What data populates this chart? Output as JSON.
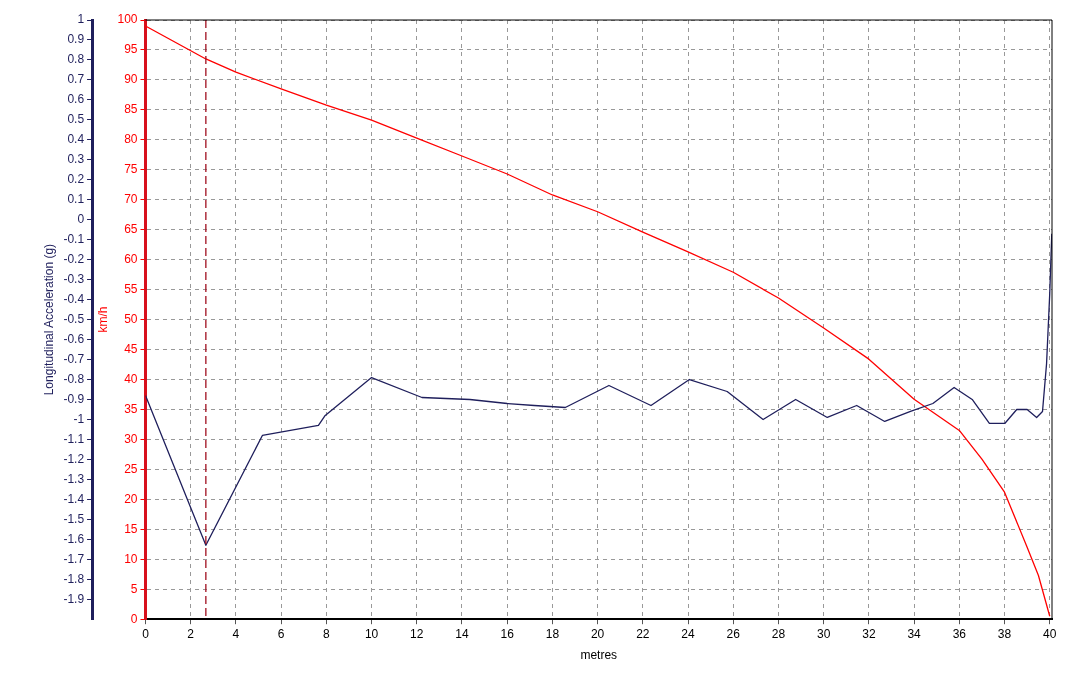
{
  "chart_data": {
    "type": "line",
    "xlabel": "metres",
    "ylabel": "Longitudinal Acceleration (g)",
    "y2label": "km/h",
    "xlim": [
      0,
      40.1
    ],
    "xticks": [
      0,
      2,
      4,
      6,
      8,
      10,
      12,
      14,
      16,
      18,
      20,
      22,
      24,
      26,
      28,
      30,
      32,
      34,
      36,
      38,
      40
    ],
    "ylim": [
      -2,
      1
    ],
    "yticks": [
      1,
      0.9,
      0.8,
      0.7,
      0.6,
      0.5,
      0.4,
      0.3,
      0.2,
      0.1,
      0,
      -0.1,
      -0.2,
      -0.3,
      -0.4,
      -0.5,
      -0.6,
      -0.7,
      -0.8,
      -0.9,
      -1,
      -1.1,
      -1.2,
      -1.3,
      -1.4,
      -1.5,
      -1.6,
      -1.7,
      -1.8,
      -1.9
    ],
    "y2lim": [
      0,
      100
    ],
    "y2ticks": [
      0,
      5,
      10,
      15,
      20,
      25,
      30,
      35,
      40,
      45,
      50,
      55,
      60,
      65,
      70,
      75,
      80,
      85,
      90,
      95,
      100
    ],
    "grid": true,
    "legend": false,
    "marker": "none",
    "line_style": "solid",
    "ref_lines": [
      {
        "axis": "x",
        "value": 2.67,
        "color": "#a01020",
        "line_style": "dashed"
      }
    ],
    "series": [
      {
        "axis": "y",
        "color": "#1f1f5c",
        "x": [
          0,
          2.67,
          5.17,
          7.65,
          7.95,
          10.0,
          12.23,
          14.35,
          16.0,
          17.2,
          18.57,
          20.5,
          22.36,
          24.06,
          25.73,
          27.32,
          28.76,
          30.16,
          31.46,
          32.7,
          33.84,
          34.83,
          35.77,
          36.57,
          37.33,
          38.01,
          38.54,
          39.0,
          39.42,
          39.68,
          39.86,
          40.0,
          40.09
        ],
        "values": [
          -0.88,
          -1.63,
          -1.08,
          -1.03,
          -0.98,
          -0.79,
          -0.89,
          -0.9,
          -0.92,
          -0.93,
          -0.94,
          -0.83,
          -0.93,
          -0.8,
          -0.86,
          -1.0,
          -0.9,
          -0.99,
          -0.93,
          -1.01,
          -0.96,
          -0.92,
          -0.84,
          -0.9,
          -1.02,
          -1.02,
          -0.95,
          -0.95,
          -0.99,
          -0.96,
          -0.72,
          -0.37,
          -0.07
        ]
      },
      {
        "axis": "y2",
        "color": "#ff0000",
        "x": [
          0,
          2.67,
          4,
          6,
          8,
          10,
          12,
          14,
          16,
          18,
          20,
          22,
          24,
          26,
          28,
          30,
          32,
          34,
          36,
          37,
          38,
          39,
          39.5,
          40
        ],
        "values": [
          99,
          93.5,
          91.3,
          88.5,
          85.8,
          83.3,
          80.3,
          77.3,
          74.3,
          70.8,
          68,
          64.6,
          61.3,
          57.9,
          53.6,
          48.6,
          43.4,
          36.7,
          31.5,
          26.7,
          21.2,
          12,
          7.3,
          0.5
        ]
      }
    ]
  }
}
